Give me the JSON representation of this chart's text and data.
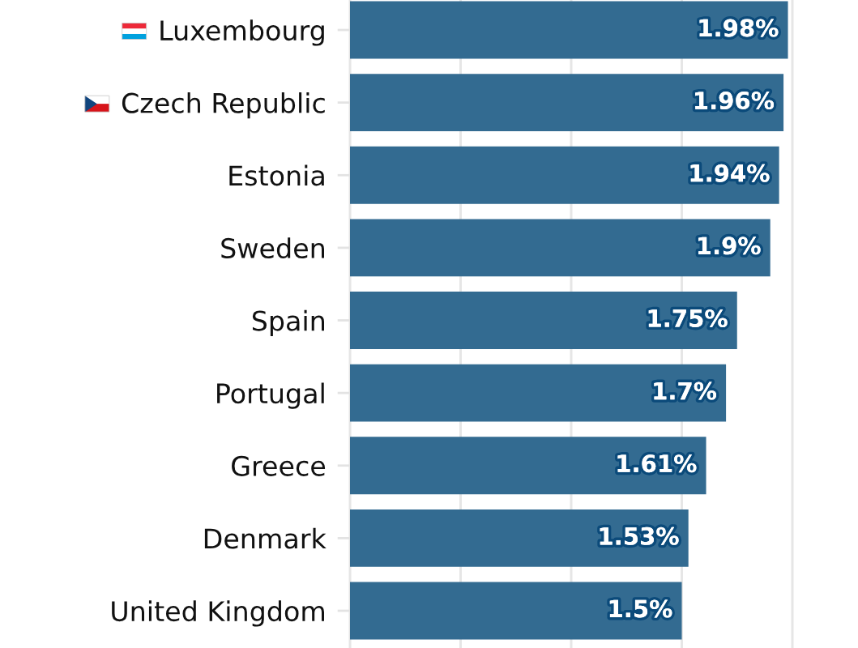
{
  "chart_data": {
    "type": "bar",
    "orientation": "horizontal",
    "categories": [
      "Luxembourg",
      "Czech Republic",
      "Estonia",
      "Sweden",
      "Spain",
      "Portugal",
      "Greece",
      "Denmark",
      "United Kingdom"
    ],
    "values": [
      1.98,
      1.96,
      1.94,
      1.9,
      1.75,
      1.7,
      1.61,
      1.53,
      1.5
    ],
    "color": "#336b91",
    "value_labels": [
      "1.98%",
      "1.96%",
      "1.94%",
      "1.9%",
      "1.75%",
      "1.7%",
      "1.61%",
      "1.53%",
      "1.5%"
    ],
    "xlim": [
      0,
      2
    ],
    "xticks": [
      {
        "value": 0,
        "label": null
      },
      {
        "value": 0.5,
        "label": null
      },
      {
        "value": 1,
        "label": null
      },
      {
        "value": 1.5,
        "label": null
      },
      {
        "value": 2,
        "label": null
      }
    ],
    "grid": "x",
    "tick_labels": "y"
  }
}
